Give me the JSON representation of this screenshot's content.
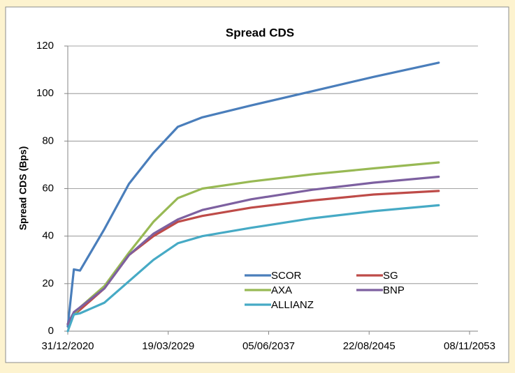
{
  "chart_data": {
    "type": "line",
    "title": "Spread CDS",
    "y_label": "Spread CDS (Bps)",
    "x": [
      "31/12/2020",
      "30/06/2021",
      "31/12/2021",
      "31/12/2023",
      "31/12/2025",
      "31/12/2027",
      "31/12/2029",
      "31/12/2031",
      "31/12/2035",
      "31/12/2040",
      "31/12/2045",
      "30/04/2051"
    ],
    "series": [
      {
        "name": "SCOR",
        "color": "#4a7ebb",
        "values": [
          2,
          26,
          25.5,
          43,
          62,
          75,
          86,
          90,
          95,
          101,
          107,
          113
        ]
      },
      {
        "name": "SG",
        "color": "#be4b48",
        "values": [
          3,
          7,
          9,
          18,
          32,
          40,
          46,
          48.5,
          52,
          55,
          57.5,
          59
        ]
      },
      {
        "name": "AXA",
        "color": "#98b954",
        "values": [
          3,
          7,
          10,
          19,
          33,
          46,
          56,
          60,
          63,
          66,
          68.5,
          71
        ]
      },
      {
        "name": "BNP",
        "color": "#7d60a0",
        "values": [
          3,
          8,
          10,
          18,
          32,
          41,
          47,
          51,
          55.5,
          59.5,
          62.5,
          65
        ]
      },
      {
        "name": "ALLIANZ",
        "color": "#46aac5",
        "values": [
          0,
          7,
          7.5,
          12,
          21,
          30,
          37,
          40,
          43.5,
          47.5,
          50.5,
          53
        ]
      }
    ],
    "xlim": [
      "31/12/2020",
      "08/11/2053"
    ],
    "xticks": [
      "31/12/2020",
      "19/03/2029",
      "05/06/2037",
      "22/08/2045",
      "08/11/2053"
    ],
    "ylim": [
      0,
      120
    ],
    "yticks": [
      0,
      20,
      40,
      60,
      80,
      100,
      120
    ],
    "grid": "y",
    "legend_position": "lower right"
  }
}
